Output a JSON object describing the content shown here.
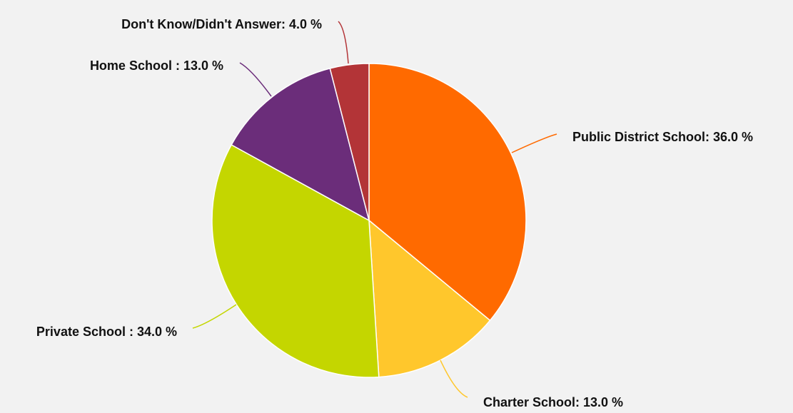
{
  "chart_data": {
    "type": "pie",
    "slices": [
      {
        "label": "Public District School",
        "value": 36.0,
        "color": "#ff6a00",
        "display": "Public District School: 36.0 %"
      },
      {
        "label": "Charter School",
        "value": 13.0,
        "color": "#ffc72c",
        "display": "Charter School: 13.0 %"
      },
      {
        "label": "Private School",
        "value": 34.0,
        "color": "#c4d600",
        "display": "Private School : 34.0 %"
      },
      {
        "label": "Home School",
        "value": 13.0,
        "color": "#6b2d7a",
        "display": "Home School : 13.0 %"
      },
      {
        "label": "Don't Know/Didn't Answer",
        "value": 4.0,
        "color": "#b33437",
        "display": "Don't Know/Didn't Answer: 4.0 %"
      }
    ],
    "start_angle": "12 o'clock",
    "direction": "clockwise",
    "background": "#f2f2f2"
  }
}
